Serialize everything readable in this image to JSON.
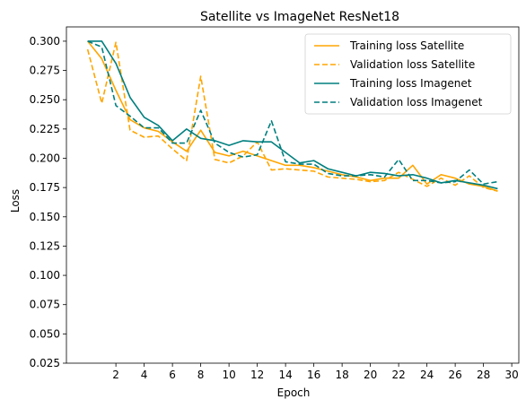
{
  "chart_data": {
    "type": "line",
    "title": "Satellite vs ImageNet ResNet18",
    "xlabel": "Epoch",
    "ylabel": "Loss",
    "xticks": [
      2,
      4,
      6,
      8,
      10,
      12,
      14,
      16,
      18,
      20,
      22,
      24,
      26,
      28,
      30
    ],
    "yticks": [
      "0.025",
      "0.050",
      "0.075",
      "0.100",
      "0.125",
      "0.150",
      "0.175",
      "0.200",
      "0.225",
      "0.250",
      "0.275",
      "0.300"
    ],
    "xlim": [
      -1.5,
      30.5
    ],
    "ylim": [
      0.025,
      0.3122
    ],
    "grid": false,
    "legend_position": "top-right",
    "x": [
      0,
      1,
      2,
      3,
      4,
      5,
      6,
      7,
      8,
      9,
      10,
      11,
      12,
      13,
      14,
      15,
      16,
      17,
      18,
      19,
      20,
      21,
      22,
      23,
      24,
      25,
      26,
      27,
      28,
      29
    ],
    "series": [
      {
        "name": "Training loss Satellite",
        "color": "#FFA500",
        "style": "solid",
        "values": [
          0.3,
          0.285,
          0.258,
          0.233,
          0.226,
          0.223,
          0.214,
          0.206,
          0.224,
          0.205,
          0.202,
          0.206,
          0.202,
          0.198,
          0.194,
          0.194,
          0.192,
          0.189,
          0.186,
          0.184,
          0.181,
          0.183,
          0.183,
          0.194,
          0.178,
          0.186,
          0.183,
          0.178,
          0.176,
          0.172
        ]
      },
      {
        "name": "Validation loss Satellite",
        "color": "#FFA500",
        "style": "dashed",
        "values": [
          0.293,
          0.247,
          0.299,
          0.224,
          0.218,
          0.219,
          0.208,
          0.198,
          0.27,
          0.199,
          0.196,
          0.202,
          0.214,
          0.19,
          0.191,
          0.19,
          0.189,
          0.184,
          0.183,
          0.182,
          0.18,
          0.181,
          0.188,
          0.182,
          0.176,
          0.183,
          0.177,
          0.185,
          0.175,
          0.172
        ]
      },
      {
        "name": "Training loss Imagenet",
        "color": "#007F7F",
        "style": "solid",
        "values": [
          0.3,
          0.3,
          0.281,
          0.252,
          0.235,
          0.228,
          0.215,
          0.225,
          0.217,
          0.215,
          0.211,
          0.215,
          0.214,
          0.214,
          0.205,
          0.196,
          0.198,
          0.191,
          0.188,
          0.185,
          0.188,
          0.187,
          0.185,
          0.186,
          0.183,
          0.179,
          0.181,
          0.179,
          0.177,
          0.174
        ]
      },
      {
        "name": "Validation loss Imagenet",
        "color": "#007F7F",
        "style": "dashed",
        "values": [
          0.3,
          0.295,
          0.245,
          0.236,
          0.226,
          0.226,
          0.213,
          0.213,
          0.241,
          0.213,
          0.205,
          0.201,
          0.203,
          0.232,
          0.197,
          0.195,
          0.195,
          0.187,
          0.185,
          0.185,
          0.186,
          0.184,
          0.199,
          0.181,
          0.181,
          0.179,
          0.18,
          0.19,
          0.178,
          0.18
        ]
      }
    ]
  }
}
